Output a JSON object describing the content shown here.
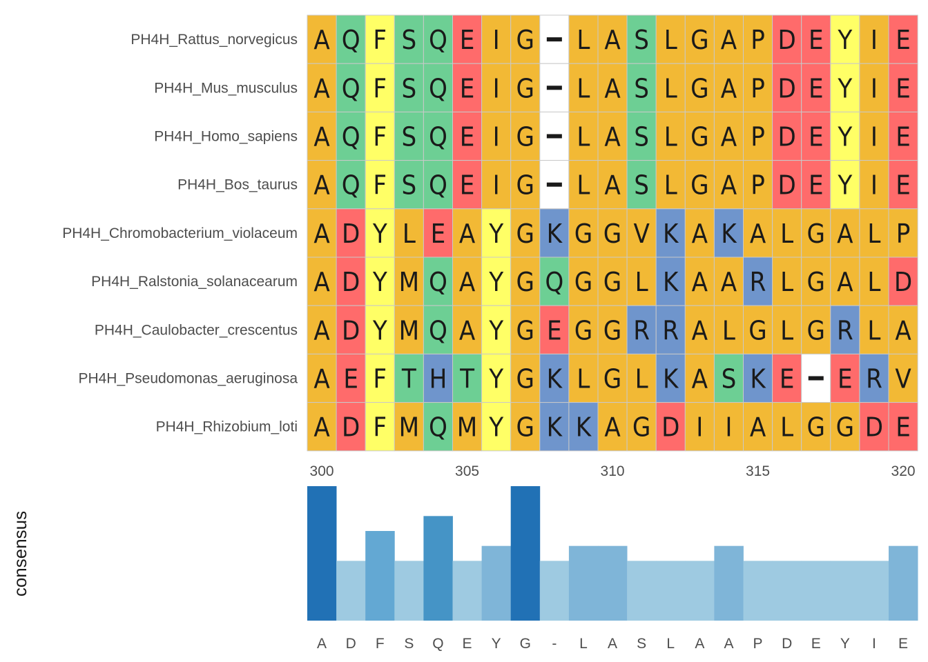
{
  "chart_data": [
    {
      "type": "heatmap",
      "subtype": "multiple-sequence-alignment",
      "positions_start": 300,
      "positions_end": 320,
      "x_ticks": [
        300,
        305,
        310,
        315,
        320
      ],
      "gap_char": "-",
      "sequences": [
        {
          "name": "PH4H_Rattus_norvegicus",
          "residues": "AQFSQEIG-LASLGAPDEYIE"
        },
        {
          "name": "PH4H_Mus_musculus",
          "residues": "AQFSQEIG-LASLGAPDEYIE"
        },
        {
          "name": "PH4H_Homo_sapiens",
          "residues": "AQFSQEIG-LASLGAPDEYIE"
        },
        {
          "name": "PH4H_Bos_taurus",
          "residues": "AQFSQEIG-LASLGAPDEYIE"
        },
        {
          "name": "PH4H_Chromobacterium_violaceum",
          "residues": "ADYLEAYGKGGVKAKALGALP"
        },
        {
          "name": "PH4H_Ralstonia_solanacearum",
          "residues": "ADYMQAYGQGGLKAARLGALD"
        },
        {
          "name": "PH4H_Caulobacter_crescentus",
          "residues": "ADYMQAYGEGGRRALGLGRLA"
        },
        {
          "name": "PH4H_Pseudomonas_aeruginosa",
          "residues": "AEFTHTYGKLGLKASKE-ERV"
        },
        {
          "name": "PH4H_Rhizobium_loti",
          "residues": "ADFMQMYGKKAGDIIALGGDE"
        }
      ],
      "residue_colors": {
        "A": "#f2b935",
        "G": "#f2b935",
        "I": "#f2b935",
        "L": "#f2b935",
        "M": "#f2b935",
        "P": "#f2b935",
        "V": "#f2b935",
        "W": "#f2b935",
        "F": "#ffff66",
        "Y": "#ffff66",
        "C": "#ffff66",
        "S": "#6dcf94",
        "T": "#6dcf94",
        "Q": "#6dcf94",
        "N": "#6dcf94",
        "D": "#ff6b6b",
        "E": "#ff6b6b",
        "K": "#6f95cc",
        "R": "#6f95cc",
        "H": "#6f95cc",
        "-": "#ffffff"
      }
    },
    {
      "type": "bar",
      "ylabel": "consensus",
      "categories": [
        "A",
        "D",
        "F",
        "S",
        "Q",
        "E",
        "Y",
        "G",
        "-",
        "L",
        "A",
        "S",
        "L",
        "A",
        "A",
        "P",
        "D",
        "E",
        "Y",
        "I",
        "E"
      ],
      "values": [
        9,
        4,
        6,
        4,
        7,
        4,
        5,
        9,
        4,
        5,
        5,
        4,
        4,
        4,
        5,
        4,
        4,
        4,
        4,
        4,
        5
      ],
      "ylim": [
        0,
        9
      ],
      "palette": {
        "4": "#9ecae1",
        "5": "#7fb5d8",
        "6": "#63a8d3",
        "7": "#4594c6",
        "9": "#2171b5"
      }
    }
  ]
}
